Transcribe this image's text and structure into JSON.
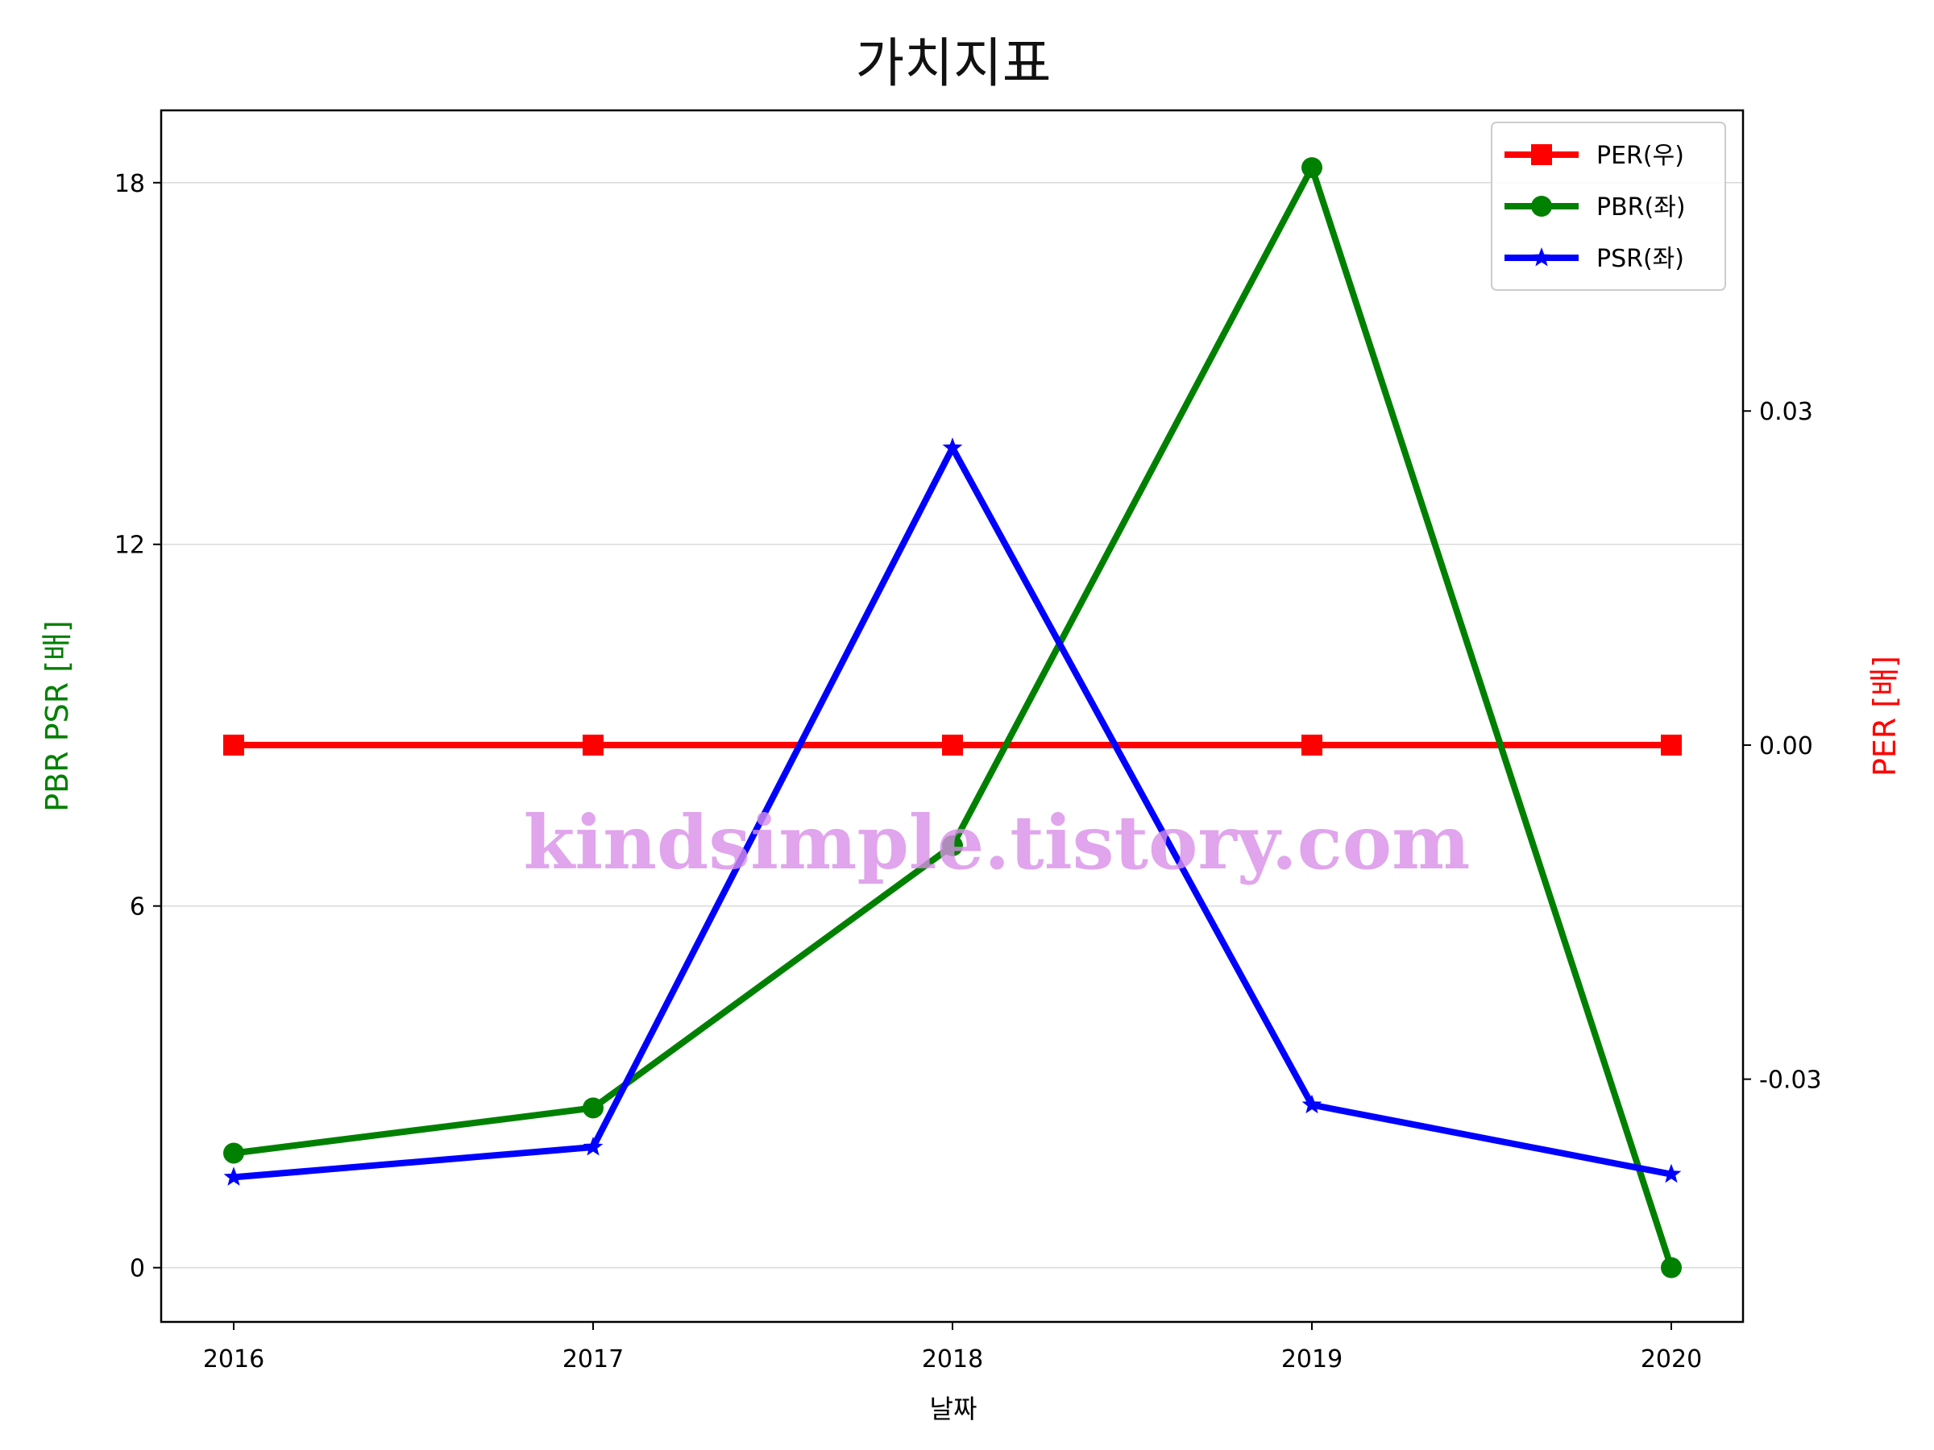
{
  "chart_data": {
    "type": "line",
    "title": "가치지표",
    "xlabel": "날짜",
    "ylabel_left": "PBR PSR [배]",
    "ylabel_right": "PER [배]",
    "categories": [
      "2016",
      "2017",
      "2018",
      "2019",
      "2020"
    ],
    "left_ylim": [
      -0.9,
      19.2
    ],
    "left_yticks": [
      0,
      6,
      12,
      18
    ],
    "left_ytick_labels": [
      "0",
      "6",
      "12",
      "18"
    ],
    "right_ylim": [
      -0.0518,
      0.057
    ],
    "right_yticks": [
      -0.03,
      0.0,
      0.03
    ],
    "right_ytick_labels": [
      "-0.03",
      "0.00",
      "0.03"
    ],
    "grid": "horizontal",
    "legend_position": "top-right",
    "watermark": "kindsimple.tistory.com",
    "series": [
      {
        "name": "PER(우)",
        "axis": "right",
        "color": "#ff0000",
        "marker": "square",
        "values": [
          0,
          0,
          0,
          0,
          0
        ]
      },
      {
        "name": "PBR(좌)",
        "axis": "left",
        "color": "#008000",
        "marker": "circle",
        "values": [
          1.9,
          2.65,
          7.0,
          18.25,
          0.0
        ]
      },
      {
        "name": "PSR(좌)",
        "axis": "left",
        "color": "#0000ff",
        "marker": "star",
        "values": [
          1.5,
          2.0,
          13.6,
          2.7,
          1.55
        ]
      }
    ]
  }
}
